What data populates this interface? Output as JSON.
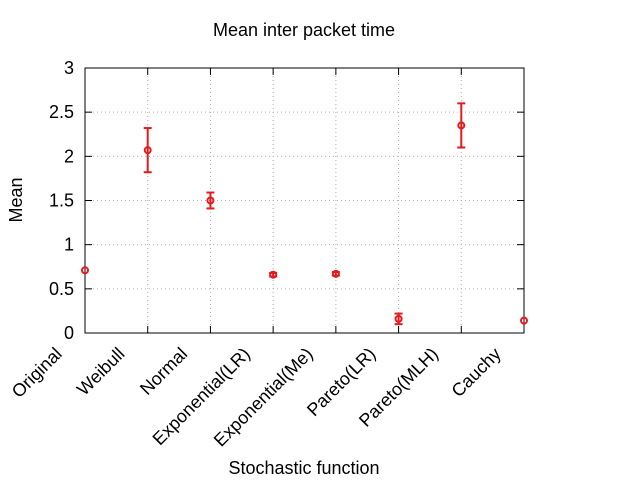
{
  "chart_data": {
    "type": "scatter",
    "title": "Mean inter packet time",
    "xlabel": "Stochastic function",
    "ylabel": "Mean",
    "ylim": [
      0,
      3
    ],
    "yticks": [
      0,
      0.5,
      1,
      1.5,
      2,
      2.5,
      3
    ],
    "grid": true,
    "marker_color": "#e41a1c",
    "categories": [
      "Original",
      "Weibull",
      "Normal",
      "Exponential(LR)",
      "Exponential(Me)",
      "Pareto(LR)",
      "Pareto(MLH)",
      "Cauchy"
    ],
    "series": [
      {
        "values": [
          0.71,
          2.07,
          1.5,
          0.66,
          0.67,
          0.16,
          2.35,
          0.14
        ],
        "err_low": [
          0.71,
          1.82,
          1.41,
          0.64,
          0.65,
          0.1,
          2.1,
          0.14
        ],
        "err_high": [
          0.71,
          2.32,
          1.59,
          0.68,
          0.69,
          0.22,
          2.6,
          0.14
        ]
      }
    ]
  }
}
